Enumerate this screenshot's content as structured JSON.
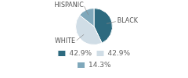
{
  "chart_data": {
    "type": "pie",
    "categories": [
      "BLACK",
      "WHITE",
      "HISPANIC"
    ],
    "values": [
      42.9,
      42.9,
      14.3
    ],
    "value_labels": [
      "42.9%",
      "42.9%",
      "14.3%"
    ],
    "colors": [
      "#2d6a7f",
      "#d0dde6",
      "#7fa8bb"
    ],
    "legend": "bottom"
  }
}
